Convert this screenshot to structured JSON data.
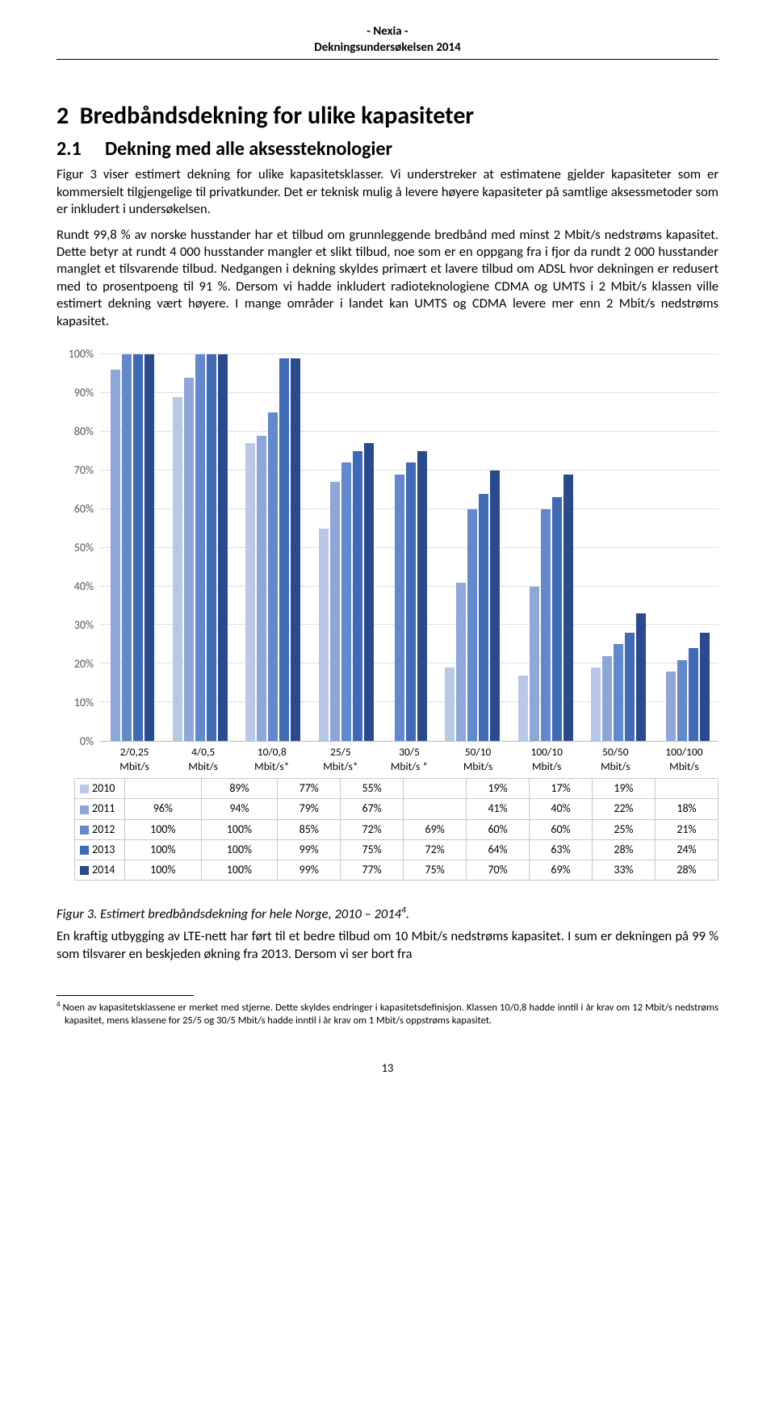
{
  "header": {
    "line1": "- Nexia -",
    "line2": "Dekningsundersøkelsen 2014"
  },
  "section": {
    "h1": "2  Bredbåndsdekning for ulike kapasiteter",
    "h2num": "2.1",
    "h2": "Dekning med alle aksessteknologier",
    "p1": "Figur 3 viser estimert dekning for ulike kapasitetsklasser. Vi understreker at estimatene gjelder kapasiteter som er kommersielt tilgjengelige til privatkunder. Det er teknisk mulig å levere høyere kapasiteter på samtlige aksessmetoder som er inkludert i undersøkelsen.",
    "p2a": "Rundt 99,8 % av norske husstander har et tilbud om grunnleggende bredbånd med minst 2 Mbit/s nedstrøms kapasitet. Dette betyr at rundt 4 000 husstander mangler et slikt tilbud, noe som er en oppgang fra i fjor da rundt 2 000 husstander manglet et tilsvarende tilbud. Nedgangen i dekning skyldes primært et lavere tilbud om ADSL hvor dekningen er redusert med to prosentpoeng til 91 %. Dersom vi hadde inkludert radioteknologiene CDMA og UMTS i 2 Mbit/s klassen ville estimert dekning vært høyere. I mange områder i landet kan UMTS og CDMA levere mer enn 2 Mbit/s nedstrøms kapasitet."
  },
  "chart": {
    "ymin": 0,
    "ymax": 100,
    "ytick_step": 10,
    "y_suffix": "%",
    "grid_color": "#e0e0e0",
    "categories": [
      "2/0,25 Mbit/s",
      "4/0,5 Mbit/s",
      "10/0,8 Mbit/s*",
      "25/5 Mbit/s*",
      "30/5 Mbit/s *",
      "50/10 Mbit/s",
      "100/10 Mbit/s",
      "50/50 Mbit/s",
      "100/100 Mbit/s"
    ],
    "series": [
      {
        "name": "2010",
        "color": "#b9c8e7",
        "values": [
          null,
          89,
          77,
          55,
          null,
          19,
          17,
          19,
          null
        ]
      },
      {
        "name": "2011",
        "color": "#8ea7da",
        "values": [
          96,
          94,
          79,
          67,
          null,
          41,
          40,
          22,
          18
        ]
      },
      {
        "name": "2012",
        "color": "#6288cd",
        "values": [
          100,
          100,
          85,
          72,
          69,
          60,
          60,
          25,
          21
        ]
      },
      {
        "name": "2013",
        "color": "#3f6ab5",
        "values": [
          100,
          100,
          99,
          75,
          72,
          64,
          63,
          28,
          24
        ]
      },
      {
        "name": "2014",
        "color": "#2a4a8e",
        "values": [
          100,
          100,
          99,
          77,
          75,
          70,
          69,
          33,
          28
        ]
      }
    ]
  },
  "caption": "Figur 3. Estimert bredbåndsdekning for hele Norge, 2010 – 2014",
  "caption_sup": "4",
  "caption_suffix": ".",
  "p3": "En kraftig utbygging av LTE-nett har ført til et bedre tilbud om 10 Mbit/s nedstrøms kapasitet. I sum er dekningen på 99 % som tilsvarer en beskjeden økning fra 2013. Dersom vi ser bort fra",
  "footnote": {
    "num": "4",
    "text": " Noen av kapasitetsklassene er merket med stjerne. Dette skyldes endringer i kapasitetsdefinisjon. Klassen 10/0,8 hadde inntil i år krav om 12 Mbit/s nedstrøms kapasitet, mens klassene for 25/5 og 30/5 Mbit/s hadde inntil i år krav om 1 Mbit/s oppstrøms kapasitet."
  },
  "page": "13"
}
